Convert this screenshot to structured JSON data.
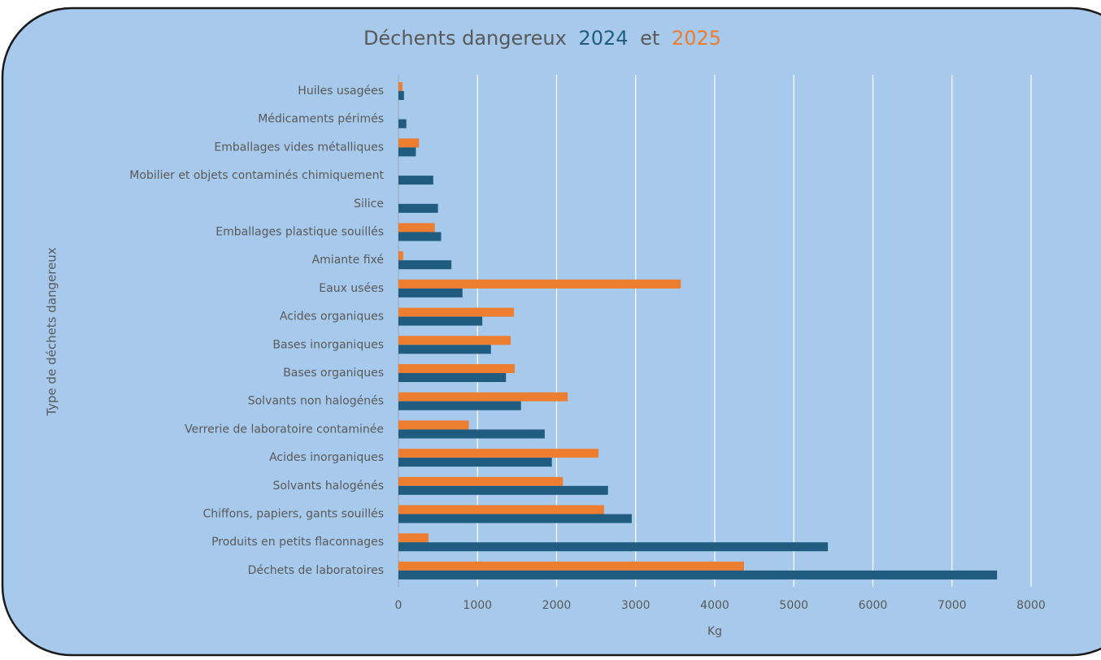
{
  "chart_data": {
    "type": "bar",
    "orientation": "horizontal",
    "title": "Déchents dangereux",
    "title_joiner": "et",
    "x_label": "Kg",
    "y_label": "Type de déchets dangereux",
    "categories": [
      "Huiles usagées",
      "Médicaments périmés",
      "Emballages vides métalliques",
      "Mobilier et objets contaminés chimiquement",
      "Silice",
      "Emballages plastique souillés",
      "Amiante fixé",
      "Eaux usées",
      "Acides organiques",
      "Bases inorganiques",
      "Bases organiques",
      "Solvants non halogénés",
      "Verrerie de  laboratoire contaminée",
      "Acides inorganiques",
      "Solvants halogénés",
      "Chiffons, papiers, gants souillés",
      "Produits en petits flaconnages",
      "Déchets de laboratoires"
    ],
    "series": [
      {
        "name": "2024",
        "color": "#1f5c80",
        "values": [
          70,
          100,
          220,
          440,
          500,
          540,
          670,
          810,
          1060,
          1170,
          1360,
          1550,
          1850,
          1940,
          2650,
          2950,
          5430,
          7570
        ]
      },
      {
        "name": "2025",
        "color": "#ed7d31",
        "values": [
          50,
          null,
          260,
          null,
          null,
          460,
          60,
          3570,
          1460,
          1420,
          1470,
          2140,
          890,
          2530,
          2080,
          2600,
          380,
          4370
        ]
      }
    ],
    "xlim": [
      0,
      8000
    ],
    "xticks": [
      0,
      1000,
      2000,
      3000,
      4000,
      5000,
      6000,
      7000,
      8000
    ],
    "grid": true
  }
}
